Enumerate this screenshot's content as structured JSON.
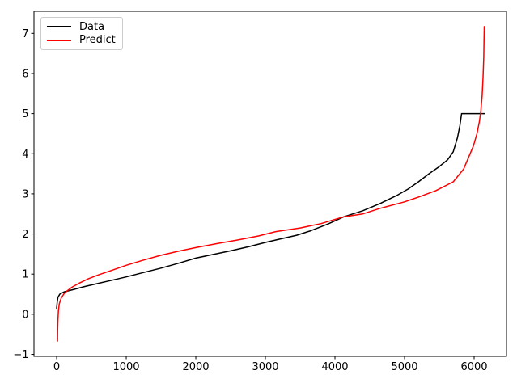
{
  "figure": {
    "background": "#ffffff",
    "axis_color": "#000000"
  },
  "chart_data": {
    "type": "line",
    "title": "",
    "xlabel": "",
    "ylabel": "",
    "grid": false,
    "xlim": [
      -326,
      6465
    ],
    "ylim": [
      -1.05,
      7.55
    ],
    "xticks": {
      "values": [
        0,
        1000,
        2000,
        3000,
        4000,
        5000,
        6000
      ],
      "labels": [
        "0",
        "1000",
        "2000",
        "3000",
        "4000",
        "5000",
        "6000"
      ]
    },
    "yticks": {
      "values": [
        -1,
        0,
        1,
        2,
        3,
        4,
        5,
        6,
        7
      ],
      "labels": [
        "−1",
        "0",
        "1",
        "2",
        "3",
        "4",
        "5",
        "6",
        "7"
      ]
    },
    "legend": {
      "position": "upper left",
      "entries": [
        "Data",
        "Predict"
      ]
    },
    "series": [
      {
        "name": "Data",
        "color": "#000000",
        "line_width": 1.5,
        "points": [
          [
            0,
            0.15
          ],
          [
            8,
            0.3
          ],
          [
            18,
            0.42
          ],
          [
            45,
            0.5
          ],
          [
            110,
            0.56
          ],
          [
            250,
            0.62
          ],
          [
            400,
            0.69
          ],
          [
            600,
            0.77
          ],
          [
            800,
            0.85
          ],
          [
            1000,
            0.93
          ],
          [
            1250,
            1.04
          ],
          [
            1500,
            1.15
          ],
          [
            1750,
            1.27
          ],
          [
            2000,
            1.4
          ],
          [
            2250,
            1.49
          ],
          [
            2500,
            1.58
          ],
          [
            2750,
            1.68
          ],
          [
            3000,
            1.79
          ],
          [
            3200,
            1.87
          ],
          [
            3450,
            1.97
          ],
          [
            3650,
            2.08
          ],
          [
            3900,
            2.25
          ],
          [
            4130,
            2.43
          ],
          [
            4400,
            2.58
          ],
          [
            4650,
            2.76
          ],
          [
            4900,
            2.97
          ],
          [
            5050,
            3.12
          ],
          [
            5200,
            3.3
          ],
          [
            5350,
            3.5
          ],
          [
            5500,
            3.68
          ],
          [
            5620,
            3.85
          ],
          [
            5700,
            4.05
          ],
          [
            5760,
            4.4
          ],
          [
            5795,
            4.7
          ],
          [
            5820,
            5.0
          ],
          [
            6150,
            5.0
          ]
        ]
      },
      {
        "name": "Predict",
        "color": "#ff0000",
        "line_width": 1.5,
        "points": [
          [
            12,
            -0.67
          ],
          [
            14,
            -0.42
          ],
          [
            18,
            -0.15
          ],
          [
            25,
            0.08
          ],
          [
            38,
            0.26
          ],
          [
            65,
            0.4
          ],
          [
            105,
            0.51
          ],
          [
            155,
            0.59
          ],
          [
            225,
            0.68
          ],
          [
            320,
            0.77
          ],
          [
            450,
            0.88
          ],
          [
            600,
            0.98
          ],
          [
            800,
            1.1
          ],
          [
            1000,
            1.22
          ],
          [
            1250,
            1.35
          ],
          [
            1500,
            1.47
          ],
          [
            1750,
            1.57
          ],
          [
            2000,
            1.66
          ],
          [
            2300,
            1.76
          ],
          [
            2600,
            1.85
          ],
          [
            2900,
            1.95
          ],
          [
            3150,
            2.06
          ],
          [
            3500,
            2.15
          ],
          [
            3800,
            2.26
          ],
          [
            4130,
            2.43
          ],
          [
            4400,
            2.5
          ],
          [
            4650,
            2.64
          ],
          [
            5000,
            2.8
          ],
          [
            5200,
            2.92
          ],
          [
            5450,
            3.08
          ],
          [
            5700,
            3.3
          ],
          [
            5850,
            3.62
          ],
          [
            5930,
            3.95
          ],
          [
            5990,
            4.2
          ],
          [
            6040,
            4.5
          ],
          [
            6075,
            4.8
          ],
          [
            6095,
            5.05
          ],
          [
            6115,
            5.45
          ],
          [
            6128,
            5.9
          ],
          [
            6138,
            6.4
          ],
          [
            6145,
            7.17
          ]
        ]
      }
    ]
  }
}
